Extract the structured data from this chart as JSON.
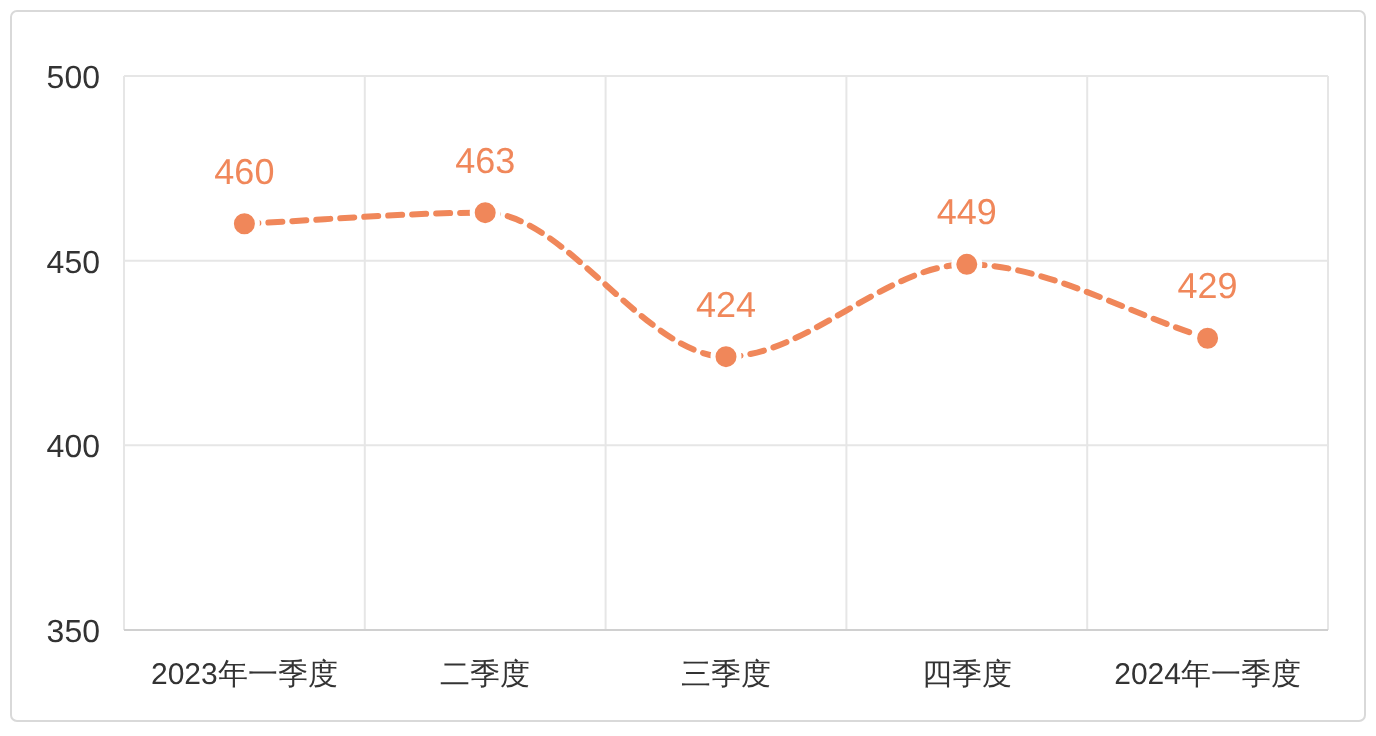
{
  "chart_data": {
    "type": "line",
    "categories": [
      "2023年一季度",
      "二季度",
      "三季度",
      "四季度",
      "2024年一季度"
    ],
    "series": [
      {
        "color": "#f0875a",
        "values": [
          460,
          463,
          424,
          449,
          429
        ]
      }
    ],
    "ylim": [
      350,
      500
    ],
    "yticks": [
      350,
      400,
      450,
      500
    ],
    "grid": true,
    "data_labels": true,
    "marker": "circle",
    "line_style": "dashed"
  }
}
